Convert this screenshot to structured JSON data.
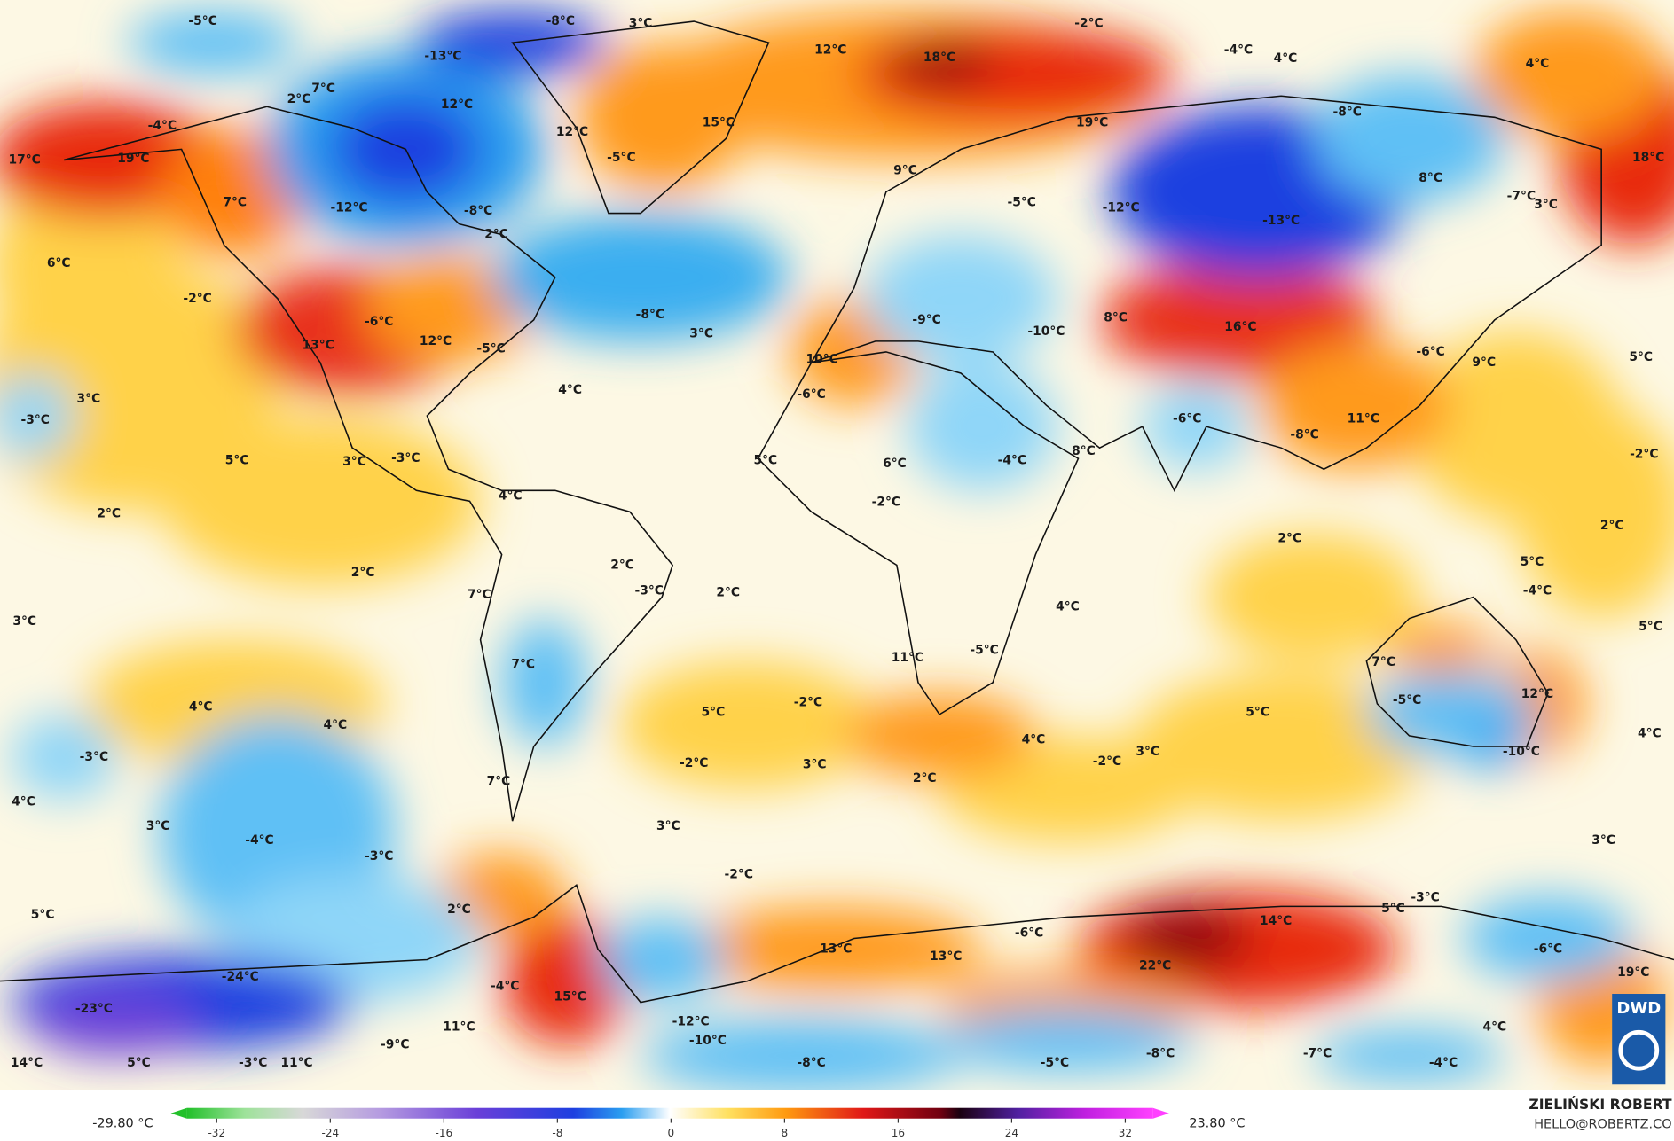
{
  "map": {
    "labels": [
      "-5°C",
      "-8°C",
      "3°C",
      "-2°C",
      "12°C",
      "18°C",
      "-4°C",
      "4°C",
      "4°C",
      "-13°C",
      "7°C",
      "2°C",
      "12°C",
      "-4°C",
      "12°C",
      "15°C",
      "19°C",
      "-8°C",
      "17°C",
      "19°C",
      "-5°C",
      "18°C",
      "9°C",
      "8°C",
      "-7°C",
      "3°C",
      "7°C",
      "-12°C",
      "-8°C",
      "-5°C",
      "-12°C",
      "-13°C",
      "2°C",
      "6°C",
      "-2°C",
      "-6°C",
      "-8°C",
      "8°C",
      "16°C",
      "-9°C",
      "-10°C",
      "13°C",
      "12°C",
      "-5°C",
      "3°C",
      "-6°C",
      "9°C",
      "5°C",
      "10°C",
      "3°C",
      "-3°C",
      "4°C",
      "-6°C",
      "-6°C",
      "11°C",
      "-8°C",
      "5°C",
      "3°C",
      "-3°C",
      "5°C",
      "6°C",
      "-4°C",
      "8°C",
      "-2°C",
      "-2°C",
      "2°C",
      "4°C",
      "2°C",
      "2°C",
      "2°C",
      "2°C",
      "-3°C",
      "7°C",
      "2°C",
      "5°C",
      "-4°C",
      "3°C",
      "4°C",
      "5°C",
      "7°C",
      "11°C",
      "-5°C",
      "7°C",
      "4°C",
      "5°C",
      "-2°C",
      "5°C",
      "-5°C",
      "12°C",
      "4°C",
      "4°C",
      "4°C",
      "-3°C",
      "-2°C",
      "3°C",
      "2°C",
      "-2°C",
      "3°C",
      "-10°C",
      "7°C",
      "4°C",
      "3°C",
      "3°C",
      "-4°C",
      "-3°C",
      "3°C",
      "-2°C",
      "2°C",
      "5°C",
      "5°C",
      "-3°C",
      "14°C",
      "-6°C",
      "13°C",
      "13°C",
      "-6°C",
      "-24°C",
      "15°C",
      "-4°C",
      "22°C",
      "19°C",
      "-23°C",
      "-12°C",
      "-10°C",
      "11°C",
      "4°C",
      "-9°C",
      "-8°C",
      "-7°C",
      "14°C",
      "5°C",
      "-3°C",
      "11°C",
      "-8°C",
      "-5°C",
      "-4°C"
    ]
  },
  "legend": {
    "min_label": "-29.80 °C",
    "max_label": "23.80 °C",
    "ticks": [
      -32,
      -24,
      -16,
      -8,
      0,
      8,
      16,
      24,
      32
    ]
  },
  "credit": {
    "author": "ZIELIŃSKI ROBERT",
    "contact": "HELLO@ROBERTZ.CO",
    "logo": "DWD"
  }
}
